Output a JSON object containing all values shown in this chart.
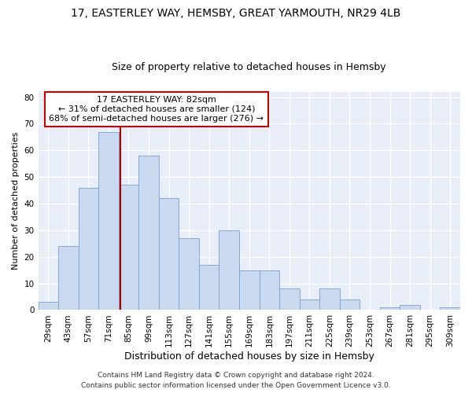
{
  "title1": "17, EASTERLEY WAY, HEMSBY, GREAT YARMOUTH, NR29 4LB",
  "title2": "Size of property relative to detached houses in Hemsby",
  "xlabel": "Distribution of detached houses by size in Hemsby",
  "ylabel": "Number of detached properties",
  "categories": [
    "29sqm",
    "43sqm",
    "57sqm",
    "71sqm",
    "85sqm",
    "99sqm",
    "113sqm",
    "127sqm",
    "141sqm",
    "155sqm",
    "169sqm",
    "183sqm",
    "197sqm",
    "211sqm",
    "225sqm",
    "239sqm",
    "253sqm",
    "267sqm",
    "281sqm",
    "295sqm",
    "309sqm"
  ],
  "values": [
    3,
    24,
    46,
    67,
    47,
    58,
    42,
    27,
    17,
    30,
    15,
    15,
    8,
    4,
    8,
    4,
    0,
    1,
    2,
    0,
    1
  ],
  "bar_color": "#c9d9f0",
  "bar_edge_color": "#7a9fd4",
  "vline_color": "#aa0000",
  "annotation_title": "17 EASTERLEY WAY: 82sqm",
  "annotation_line1": "← 31% of detached houses are smaller (124)",
  "annotation_line2": "68% of semi-detached houses are larger (276) →",
  "annotation_box_color": "#ffffff",
  "annotation_box_edge": "#cc0000",
  "footer1": "Contains HM Land Registry data © Crown copyright and database right 2024.",
  "footer2": "Contains public sector information licensed under the Open Government Licence v3.0.",
  "ylim": [
    0,
    82
  ],
  "yticks": [
    0,
    10,
    20,
    30,
    40,
    50,
    60,
    70,
    80
  ],
  "bg_color": "#e8eef8",
  "grid_color": "#ffffff",
  "fig_bg_color": "#ffffff",
  "title1_fontsize": 10,
  "title2_fontsize": 9,
  "xlabel_fontsize": 9,
  "ylabel_fontsize": 8,
  "tick_fontsize": 7.5,
  "annotation_fontsize": 8,
  "footer_fontsize": 6.5
}
